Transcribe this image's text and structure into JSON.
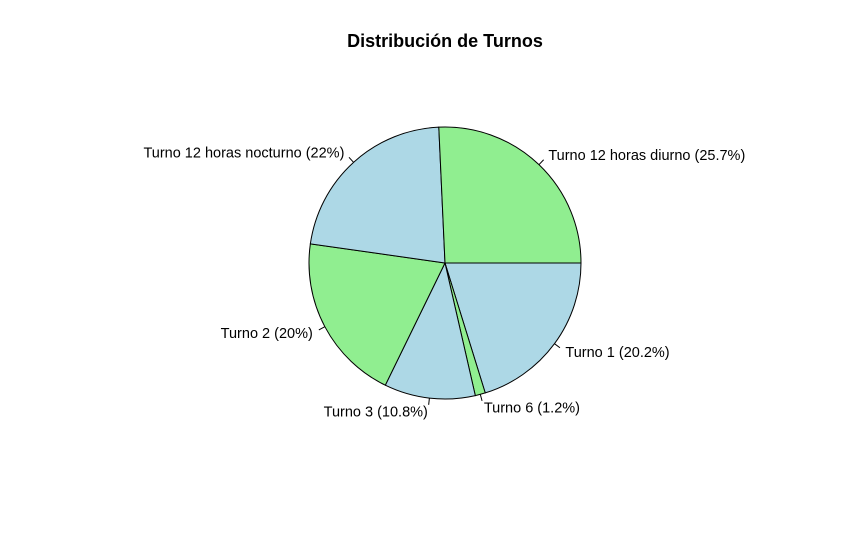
{
  "chart_data": {
    "type": "pie",
    "title": "Distribución de Turnos",
    "categories": [
      "Turno 1",
      "Turno 6",
      "Turno 3",
      "Turno 2",
      "Turno 12 horas nocturno",
      "Turno 12 horas diurno"
    ],
    "values": [
      20.2,
      1.2,
      10.8,
      20,
      22,
      25.7
    ],
    "labels": [
      "Turno 1 (20.2%)",
      "Turno 6 (1.2%)",
      "Turno 3 (10.8%)",
      "Turno 2 (20%)",
      "Turno 12 horas nocturno (22%)",
      "Turno 12 horas diurno (25.7%)"
    ],
    "colors": [
      "#add8e6",
      "#90ee90",
      "#add8e6",
      "#90ee90",
      "#add8e6",
      "#90ee90"
    ],
    "start_angle_deg": 0,
    "direction": "clockwise",
    "legend": "none"
  }
}
